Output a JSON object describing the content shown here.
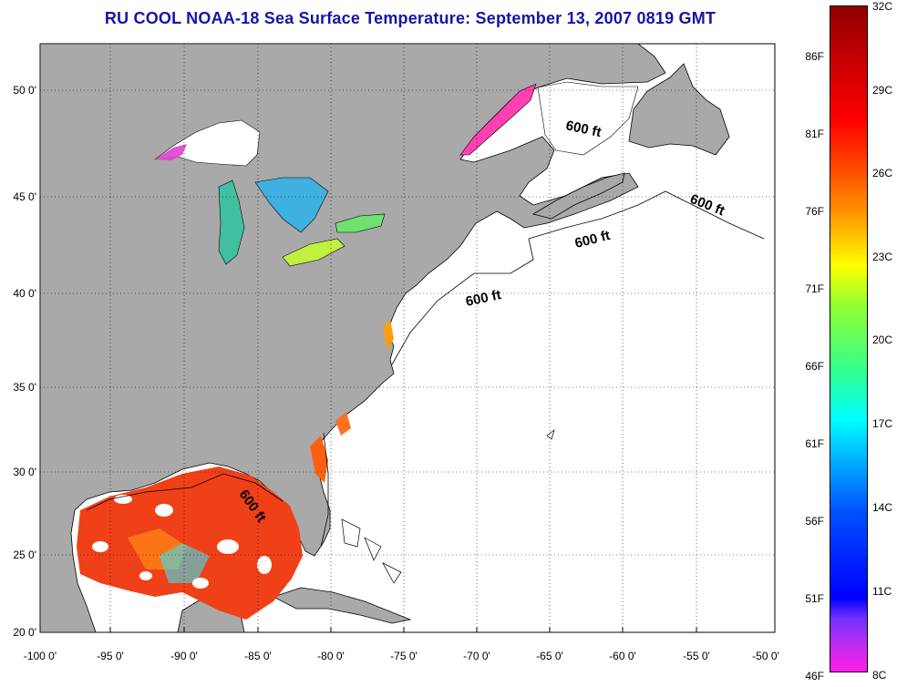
{
  "title": "RU COOL  NOAA-18  Sea Surface Temperature:  September 13, 2007 0819 GMT",
  "map": {
    "lon_labels": [
      "-100 0'",
      "-95 0'",
      "-90 0'",
      "-85 0'",
      "-80 0'",
      "-75 0'",
      "-70 0'",
      "-65 0'",
      "-60 0'",
      "-55 0'",
      "-50 0'"
    ],
    "lat_labels": [
      "50 0'",
      "45 0'",
      "40 0'",
      "35 0'",
      "30 0'",
      "25 0'",
      "20 0'"
    ],
    "isobath_labels": [
      "600 ft",
      "600 ft",
      "600 ft",
      "600 ft",
      "600 ft"
    ],
    "colors": {
      "land": "#a9a9a9",
      "ocean": "#ffffff",
      "coast": "#000000",
      "title": "#1515a8"
    }
  },
  "colorbar": {
    "fahrenheit": [
      "86F",
      "81F",
      "76F",
      "71F",
      "66F",
      "61F",
      "56F",
      "51F",
      "46F"
    ],
    "celsius": [
      "32C",
      "29C",
      "26C",
      "23C",
      "20C",
      "17C",
      "14C",
      "11C",
      "8C"
    ]
  }
}
